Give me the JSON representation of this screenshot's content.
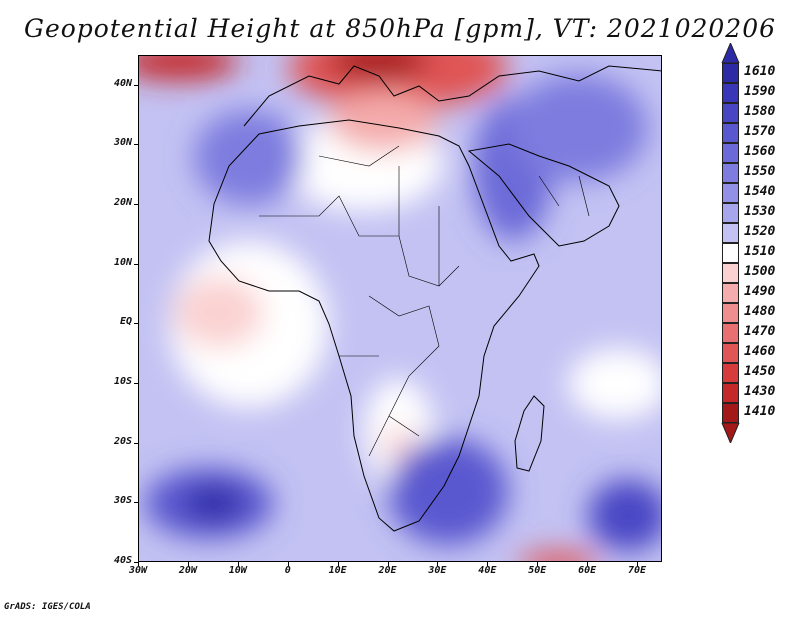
{
  "title": "Geopotential Height at 850hPa [gpm], VT: 2021020206",
  "footer": "GrADS: IGES/COLA",
  "map": {
    "lon_range": [
      -30,
      75
    ],
    "lat_range": [
      -40,
      45
    ],
    "lat_ticks": [
      {
        "value": 40,
        "label": "40N"
      },
      {
        "value": 30,
        "label": "30N"
      },
      {
        "value": 20,
        "label": "20N"
      },
      {
        "value": 10,
        "label": "10N"
      },
      {
        "value": 0,
        "label": "EQ"
      },
      {
        "value": -10,
        "label": "10S"
      },
      {
        "value": -20,
        "label": "20S"
      },
      {
        "value": -30,
        "label": "30S"
      },
      {
        "value": -40,
        "label": "40S"
      }
    ],
    "lon_ticks": [
      {
        "value": -30,
        "label": "30W"
      },
      {
        "value": -20,
        "label": "20W"
      },
      {
        "value": -10,
        "label": "10W"
      },
      {
        "value": 0,
        "label": "0"
      },
      {
        "value": 10,
        "label": "10E"
      },
      {
        "value": 20,
        "label": "20E"
      },
      {
        "value": 30,
        "label": "30E"
      },
      {
        "value": 40,
        "label": "40E"
      },
      {
        "value": 50,
        "label": "50E"
      },
      {
        "value": 60,
        "label": "60E"
      },
      {
        "value": 70,
        "label": "70E"
      }
    ]
  },
  "colorbar": {
    "levels": [
      {
        "label": "1610",
        "color": "#2d2aa6"
      },
      {
        "label": "1590",
        "color": "#3a36b8"
      },
      {
        "label": "1580",
        "color": "#4946c4"
      },
      {
        "label": "1570",
        "color": "#5a58cf"
      },
      {
        "label": "1560",
        "color": "#6c6ad8"
      },
      {
        "label": "1550",
        "color": "#7e7ddf"
      },
      {
        "label": "1540",
        "color": "#9291e6"
      },
      {
        "label": "1530",
        "color": "#a7a6ec"
      },
      {
        "label": "1520",
        "color": "#c3c2f3"
      },
      {
        "label": "1510",
        "color": "#ffffff"
      },
      {
        "label": "1500",
        "color": "#fbd2d2"
      },
      {
        "label": "1490",
        "color": "#f4acac"
      },
      {
        "label": "1480",
        "color": "#ee8e8e"
      },
      {
        "label": "1470",
        "color": "#e87070"
      },
      {
        "label": "1460",
        "color": "#e05555"
      },
      {
        "label": "1450",
        "color": "#d63c3c"
      },
      {
        "label": "1430",
        "color": "#c52828"
      },
      {
        "label": "1410",
        "color": "#a31818"
      }
    ]
  },
  "field": {
    "base_color": "#c3c2f3",
    "regions": [
      {
        "name": "north-high-europe",
        "color": "#e05555",
        "lon": 22,
        "lat": 43,
        "rx": 22,
        "ry": 7
      },
      {
        "name": "north-high-atlantic",
        "color": "#c52828",
        "lon": -22,
        "lat": 44,
        "rx": 12,
        "ry": 3
      },
      {
        "name": "north-high-core",
        "color": "#a31818",
        "lon": 18,
        "lat": 44,
        "rx": 10,
        "ry": 3
      },
      {
        "name": "sahara-white",
        "color": "#ffffff",
        "lon": 15,
        "lat": 27,
        "rx": 16,
        "ry": 8
      },
      {
        "name": "sahara-pink",
        "color": "#f4acac",
        "lon": 19,
        "lat": 34,
        "rx": 11,
        "ry": 5
      },
      {
        "name": "atlantic-eq-white",
        "color": "#ffffff",
        "lon": -8,
        "lat": 0,
        "rx": 16,
        "ry": 14
      },
      {
        "name": "atlantic-eq-pink",
        "color": "#fbd2d2",
        "lon": -14,
        "lat": 2,
        "rx": 9,
        "ry": 6
      },
      {
        "name": "kalahari-white",
        "color": "#ffffff",
        "lon": 22,
        "lat": -18,
        "rx": 7,
        "ry": 9
      },
      {
        "name": "kalahari-pink",
        "color": "#fbd2d2",
        "lon": 22,
        "lat": -20,
        "rx": 3,
        "ry": 3
      },
      {
        "name": "indian-ocean-white",
        "color": "#ffffff",
        "lon": 66,
        "lat": -10,
        "rx": 10,
        "ry": 6
      },
      {
        "name": "nw-africa-blue",
        "color": "#7e7ddf",
        "lon": -8,
        "lat": 28,
        "rx": 11,
        "ry": 8
      },
      {
        "name": "arabia-blue",
        "color": "#6c6ad8",
        "lon": 45,
        "lat": 26,
        "rx": 8,
        "ry": 12
      },
      {
        "name": "iran-blue",
        "color": "#7e7ddf",
        "lon": 58,
        "lat": 33,
        "rx": 14,
        "ry": 9
      },
      {
        "name": "atlantic-south-blue",
        "color": "#5a58cf",
        "lon": -16,
        "lat": -30,
        "rx": 13,
        "ry": 6
      },
      {
        "name": "atlantic-south-core",
        "color": "#2d2aa6",
        "lon": -15,
        "lat": -30,
        "rx": 6,
        "ry": 3
      },
      {
        "name": "south-africa-blue",
        "color": "#5a58cf",
        "lon": 32,
        "lat": -28,
        "rx": 12,
        "ry": 9
      },
      {
        "name": "indian-south-blue",
        "color": "#4946c4",
        "lon": 68,
        "lat": -32,
        "rx": 8,
        "ry": 6
      },
      {
        "name": "south-high",
        "color": "#e05555",
        "lon": 54,
        "lat": -40,
        "rx": 8,
        "ry": 2
      }
    ]
  }
}
